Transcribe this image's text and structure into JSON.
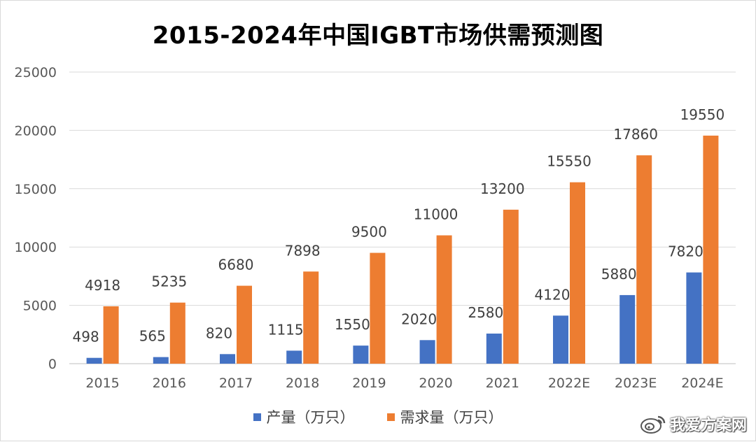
{
  "chart_data": {
    "type": "bar",
    "title": "2015-2024年中国IGBT市场供需预测图",
    "categories": [
      "2015",
      "2016",
      "2017",
      "2018",
      "2019",
      "2020",
      "2021",
      "2022E",
      "2023E",
      "2024E"
    ],
    "series": [
      {
        "name": "产量（万只）",
        "color": "#4472C4",
        "values": [
          498,
          565,
          820,
          1115,
          1550,
          2020,
          2580,
          4120,
          5880,
          7820
        ]
      },
      {
        "name": "需求量（万只）",
        "color": "#ED7D31",
        "values": [
          4918,
          5235,
          6680,
          7898,
          9500,
          11000,
          13200,
          15550,
          17860,
          19550
        ]
      }
    ],
    "ylim": [
      0,
      25000
    ],
    "yticks": [
      "0",
      "5000",
      "10000",
      "15000",
      "20000",
      "25000"
    ],
    "grid": true,
    "legend_position": "bottom",
    "data_labels": true
  },
  "watermark": {
    "text": "我爱方案网"
  }
}
